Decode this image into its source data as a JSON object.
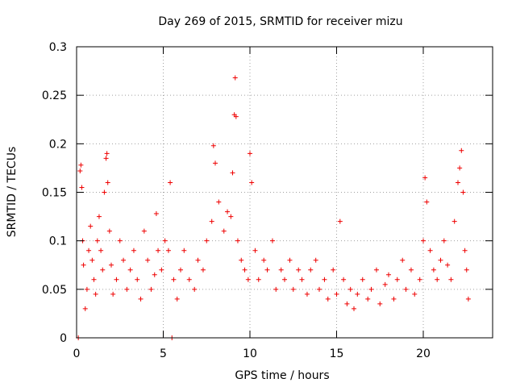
{
  "chart_data": {
    "type": "scatter",
    "title": "Day 269 of 2015, SRMTID for receiver mizu",
    "xlabel": "GPS time / hours",
    "ylabel": "SRMTID / TECUs",
    "xlim": [
      0,
      24
    ],
    "ylim": [
      0,
      0.3
    ],
    "x_ticks": [
      "0",
      "5",
      "10",
      "15",
      "20"
    ],
    "x_tick_values": [
      0,
      5,
      10,
      15,
      20
    ],
    "y_ticks": [
      "0",
      "0.05",
      "0.1",
      "0.15",
      "0.2",
      "0.25",
      "0.3"
    ],
    "y_tick_values": [
      0,
      0.05,
      0.1,
      0.15,
      0.2,
      0.25,
      0.3
    ],
    "grid": true,
    "marker": "+",
    "color": "#ee0000",
    "series": [
      {
        "name": "SRMTID",
        "points": [
          [
            0.1,
            0.0
          ],
          [
            0.2,
            0.172
          ],
          [
            0.25,
            0.178
          ],
          [
            0.3,
            0.155
          ],
          [
            0.35,
            0.1
          ],
          [
            0.4,
            0.075
          ],
          [
            0.5,
            0.03
          ],
          [
            0.6,
            0.05
          ],
          [
            0.7,
            0.09
          ],
          [
            0.8,
            0.115
          ],
          [
            0.9,
            0.08
          ],
          [
            1.0,
            0.06
          ],
          [
            1.1,
            0.045
          ],
          [
            1.2,
            0.1
          ],
          [
            1.3,
            0.125
          ],
          [
            1.4,
            0.09
          ],
          [
            1.5,
            0.07
          ],
          [
            1.6,
            0.15
          ],
          [
            1.7,
            0.185
          ],
          [
            1.75,
            0.19
          ],
          [
            1.8,
            0.16
          ],
          [
            1.9,
            0.11
          ],
          [
            2.0,
            0.075
          ],
          [
            2.1,
            0.045
          ],
          [
            2.3,
            0.06
          ],
          [
            2.5,
            0.1
          ],
          [
            2.7,
            0.08
          ],
          [
            2.9,
            0.05
          ],
          [
            3.1,
            0.07
          ],
          [
            3.3,
            0.09
          ],
          [
            3.5,
            0.06
          ],
          [
            3.7,
            0.04
          ],
          [
            3.9,
            0.11
          ],
          [
            4.1,
            0.08
          ],
          [
            4.3,
            0.05
          ],
          [
            4.5,
            0.065
          ],
          [
            4.6,
            0.128
          ],
          [
            4.7,
            0.09
          ],
          [
            4.9,
            0.07
          ],
          [
            5.1,
            0.1
          ],
          [
            5.3,
            0.09
          ],
          [
            5.4,
            0.16
          ],
          [
            5.5,
            0.0
          ],
          [
            5.6,
            0.06
          ],
          [
            5.8,
            0.04
          ],
          [
            6.0,
            0.07
          ],
          [
            6.2,
            0.09
          ],
          [
            6.5,
            0.06
          ],
          [
            6.8,
            0.05
          ],
          [
            7.0,
            0.08
          ],
          [
            7.3,
            0.07
          ],
          [
            7.5,
            0.1
          ],
          [
            7.8,
            0.12
          ],
          [
            7.9,
            0.198
          ],
          [
            8.0,
            0.18
          ],
          [
            8.2,
            0.14
          ],
          [
            8.5,
            0.11
          ],
          [
            8.7,
            0.13
          ],
          [
            8.9,
            0.125
          ],
          [
            9.0,
            0.17
          ],
          [
            9.1,
            0.23
          ],
          [
            9.15,
            0.268
          ],
          [
            9.2,
            0.228
          ],
          [
            9.3,
            0.1
          ],
          [
            9.5,
            0.08
          ],
          [
            9.7,
            0.07
          ],
          [
            9.9,
            0.06
          ],
          [
            10.0,
            0.19
          ],
          [
            10.1,
            0.16
          ],
          [
            10.3,
            0.09
          ],
          [
            10.5,
            0.06
          ],
          [
            10.8,
            0.08
          ],
          [
            11.0,
            0.07
          ],
          [
            11.3,
            0.1
          ],
          [
            11.5,
            0.05
          ],
          [
            11.8,
            0.07
          ],
          [
            12.0,
            0.06
          ],
          [
            12.3,
            0.08
          ],
          [
            12.5,
            0.05
          ],
          [
            12.8,
            0.07
          ],
          [
            13.0,
            0.06
          ],
          [
            13.3,
            0.045
          ],
          [
            13.5,
            0.07
          ],
          [
            13.8,
            0.08
          ],
          [
            14.0,
            0.05
          ],
          [
            14.3,
            0.06
          ],
          [
            14.5,
            0.04
          ],
          [
            14.8,
            0.07
          ],
          [
            15.0,
            0.045
          ],
          [
            15.2,
            0.12
          ],
          [
            15.4,
            0.06
          ],
          [
            15.6,
            0.035
          ],
          [
            15.8,
            0.05
          ],
          [
            16.0,
            0.03
          ],
          [
            16.2,
            0.045
          ],
          [
            16.5,
            0.06
          ],
          [
            16.8,
            0.04
          ],
          [
            17.0,
            0.05
          ],
          [
            17.3,
            0.07
          ],
          [
            17.5,
            0.035
          ],
          [
            17.8,
            0.055
          ],
          [
            18.0,
            0.065
          ],
          [
            18.3,
            0.04
          ],
          [
            18.5,
            0.06
          ],
          [
            18.8,
            0.08
          ],
          [
            19.0,
            0.05
          ],
          [
            19.3,
            0.07
          ],
          [
            19.5,
            0.045
          ],
          [
            19.8,
            0.06
          ],
          [
            20.0,
            0.1
          ],
          [
            20.1,
            0.165
          ],
          [
            20.2,
            0.14
          ],
          [
            20.4,
            0.09
          ],
          [
            20.6,
            0.07
          ],
          [
            20.8,
            0.06
          ],
          [
            21.0,
            0.08
          ],
          [
            21.2,
            0.1
          ],
          [
            21.4,
            0.075
          ],
          [
            21.6,
            0.06
          ],
          [
            21.8,
            0.12
          ],
          [
            22.0,
            0.16
          ],
          [
            22.1,
            0.175
          ],
          [
            22.2,
            0.193
          ],
          [
            22.3,
            0.15
          ],
          [
            22.4,
            0.09
          ],
          [
            22.5,
            0.07
          ],
          [
            22.6,
            0.04
          ]
        ]
      }
    ]
  }
}
